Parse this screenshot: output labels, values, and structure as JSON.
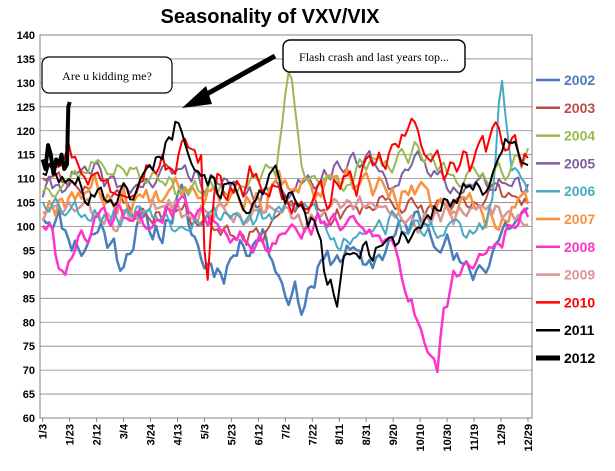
{
  "chart_data": {
    "type": "line",
    "title": "Seasonality of VXV/VIX",
    "xlabel": "",
    "ylabel": "",
    "ylim": [
      60,
      140
    ],
    "yticks": [
      60,
      65,
      70,
      75,
      80,
      85,
      90,
      95,
      100,
      105,
      110,
      115,
      120,
      125,
      130,
      135,
      140
    ],
    "xrange": [
      0,
      365
    ],
    "x_tick_labels": [
      "1/3",
      "1/23",
      "2/12",
      "3/4",
      "3/24",
      "4/13",
      "5/3",
      "5/23",
      "6/12",
      "7/2",
      "7/22",
      "8/11",
      "8/31",
      "9/20",
      "10/10",
      "10/30",
      "11/19",
      "12/9",
      "12/29"
    ],
    "x_tick_days": [
      2,
      22,
      42,
      62,
      82,
      102,
      122,
      142,
      162,
      182,
      202,
      222,
      242,
      262,
      282,
      302,
      322,
      342,
      362
    ],
    "grid": true,
    "legend_position": "right",
    "series": [
      {
        "name": "2002",
        "color": "#4a7ebb",
        "width": 2.5,
        "kx": [
          2,
          15,
          30,
          45,
          60,
          75,
          90,
          105,
          120,
          135,
          150,
          165,
          180,
          195,
          210,
          225,
          240,
          255,
          270,
          285,
          300,
          315,
          330,
          345,
          362
        ],
        "ky": [
          103,
          101,
          95,
          100,
          93,
          100,
          99,
          106,
          93,
          91,
          96,
          99,
          88,
          84,
          92,
          95,
          92,
          95,
          100,
          102,
          97,
          90,
          92,
          100,
          102
        ],
        "amp": 4,
        "seed": 11
      },
      {
        "name": "2003",
        "color": "#be4b48",
        "width": 2,
        "kx": [
          2,
          20,
          40,
          60,
          80,
          100,
          120,
          140,
          160,
          180,
          200,
          220,
          240,
          260,
          280,
          300,
          320,
          340,
          362
        ],
        "ky": [
          111,
          109,
          108,
          105,
          102,
          104,
          101,
          100,
          98,
          103,
          104,
          102,
          104,
          106,
          103,
          105,
          103,
          108,
          106
        ],
        "amp": 3,
        "seed": 23
      },
      {
        "name": "2004",
        "color": "#98b954",
        "width": 2,
        "kx": [
          2,
          20,
          40,
          60,
          80,
          100,
          120,
          140,
          160,
          175,
          185,
          195,
          210,
          225,
          240,
          260,
          280,
          300,
          320,
          340,
          362
        ],
        "ky": [
          108,
          110,
          113,
          112,
          110,
          109,
          107,
          108,
          111,
          110,
          134,
          112,
          109,
          110,
          112,
          113,
          115,
          112,
          110,
          112,
          114
        ],
        "amp": 3,
        "seed": 37
      },
      {
        "name": "2005",
        "color": "#7d60a0",
        "width": 2,
        "kx": [
          2,
          20,
          40,
          60,
          80,
          100,
          120,
          140,
          160,
          180,
          200,
          220,
          240,
          260,
          280,
          300,
          320,
          340,
          362
        ],
        "ky": [
          107,
          110,
          111,
          108,
          109,
          112,
          110,
          108,
          106,
          108,
          110,
          112,
          114,
          110,
          113,
          110,
          108,
          110,
          107
        ],
        "amp": 3,
        "seed": 41
      },
      {
        "name": "2006",
        "color": "#46aac5",
        "width": 2,
        "kx": [
          2,
          20,
          40,
          60,
          80,
          100,
          120,
          140,
          160,
          180,
          200,
          220,
          240,
          260,
          280,
          300,
          320,
          335,
          342,
          350,
          362
        ],
        "ky": [
          106,
          104,
          103,
          102,
          104,
          101,
          102,
          103,
          101,
          103,
          105,
          96,
          100,
          101,
          99,
          100,
          98,
          103,
          131,
          112,
          108
        ],
        "amp": 3,
        "seed": 53
      },
      {
        "name": "2007",
        "color": "#f69240",
        "width": 2.5,
        "kx": [
          2,
          20,
          40,
          60,
          80,
          100,
          120,
          140,
          160,
          180,
          200,
          220,
          240,
          260,
          280,
          300,
          320,
          340,
          362
        ],
        "ky": [
          104,
          107,
          108,
          105,
          106,
          110,
          108,
          107,
          105,
          109,
          107,
          108,
          110,
          106,
          107,
          105,
          104,
          102,
          106
        ],
        "amp": 4,
        "seed": 67
      },
      {
        "name": "2008",
        "color": "#ff33cc",
        "width": 2.5,
        "kx": [
          2,
          10,
          15,
          25,
          40,
          60,
          80,
          100,
          120,
          140,
          160,
          180,
          200,
          220,
          240,
          260,
          270,
          280,
          290,
          295,
          300,
          310,
          320,
          335,
          350,
          362
        ],
        "ky": [
          101,
          98,
          90,
          95,
          101,
          104,
          100,
          105,
          103,
          99,
          96,
          98,
          100,
          101,
          100,
          98,
          88,
          80,
          74,
          70,
          84,
          91,
          93,
          96,
          100,
          102
        ],
        "amp": 3,
        "seed": 79
      },
      {
        "name": "2009",
        "color": "#d99795",
        "width": 2.5,
        "kx": [
          2,
          20,
          40,
          60,
          80,
          100,
          120,
          140,
          160,
          180,
          200,
          220,
          240,
          260,
          280,
          300,
          320,
          340,
          362
        ],
        "ky": [
          102,
          104,
          103,
          101,
          103,
          105,
          104,
          103,
          102,
          103,
          101,
          104,
          104,
          103,
          101,
          103,
          102,
          104,
          101
        ],
        "amp": 3,
        "seed": 83
      },
      {
        "name": "2010",
        "color": "#ff0000",
        "width": 2,
        "kx": [
          2,
          20,
          40,
          60,
          80,
          100,
          110,
          120,
          123,
          130,
          140,
          160,
          180,
          200,
          220,
          240,
          260,
          270,
          280,
          290,
          300,
          320,
          340,
          362
        ],
        "ky": [
          115,
          116,
          110,
          108,
          113,
          112,
          118,
          114,
          82,
          110,
          108,
          111,
          106,
          104,
          109,
          110,
          115,
          118,
          122,
          114,
          112,
          113,
          120,
          115
        ],
        "amp": 4,
        "seed": 97
      },
      {
        "name": "2011",
        "color": "#000000",
        "width": 2,
        "kx": [
          2,
          15,
          30,
          45,
          60,
          75,
          90,
          105,
          115,
          130,
          145,
          160,
          175,
          190,
          205,
          210,
          215,
          220,
          225,
          240,
          255,
          270,
          285,
          300,
          315,
          330,
          345,
          362
        ],
        "ky": [
          112,
          110,
          108,
          107,
          106,
          109,
          116,
          123,
          113,
          109,
          107,
          104,
          110,
          104,
          100,
          92,
          88,
          84,
          91,
          96,
          96,
          98,
          101,
          105,
          106,
          109,
          118,
          114
        ],
        "amp": 3.5,
        "seed": 101
      },
      {
        "name": "2012",
        "color": "#000000",
        "width": 4,
        "x": [
          2,
          4,
          6,
          8,
          10,
          12,
          14,
          16,
          18,
          20,
          21,
          22
        ],
        "y": [
          114,
          112,
          117,
          115,
          111,
          114,
          113,
          115,
          112,
          113,
          125,
          126
        ]
      }
    ]
  },
  "annotations": [
    {
      "name": "kidding-callout",
      "text": "Are u kidding me?"
    },
    {
      "name": "flash-crash-callout",
      "text": "Flash crash and last years top..."
    }
  ]
}
